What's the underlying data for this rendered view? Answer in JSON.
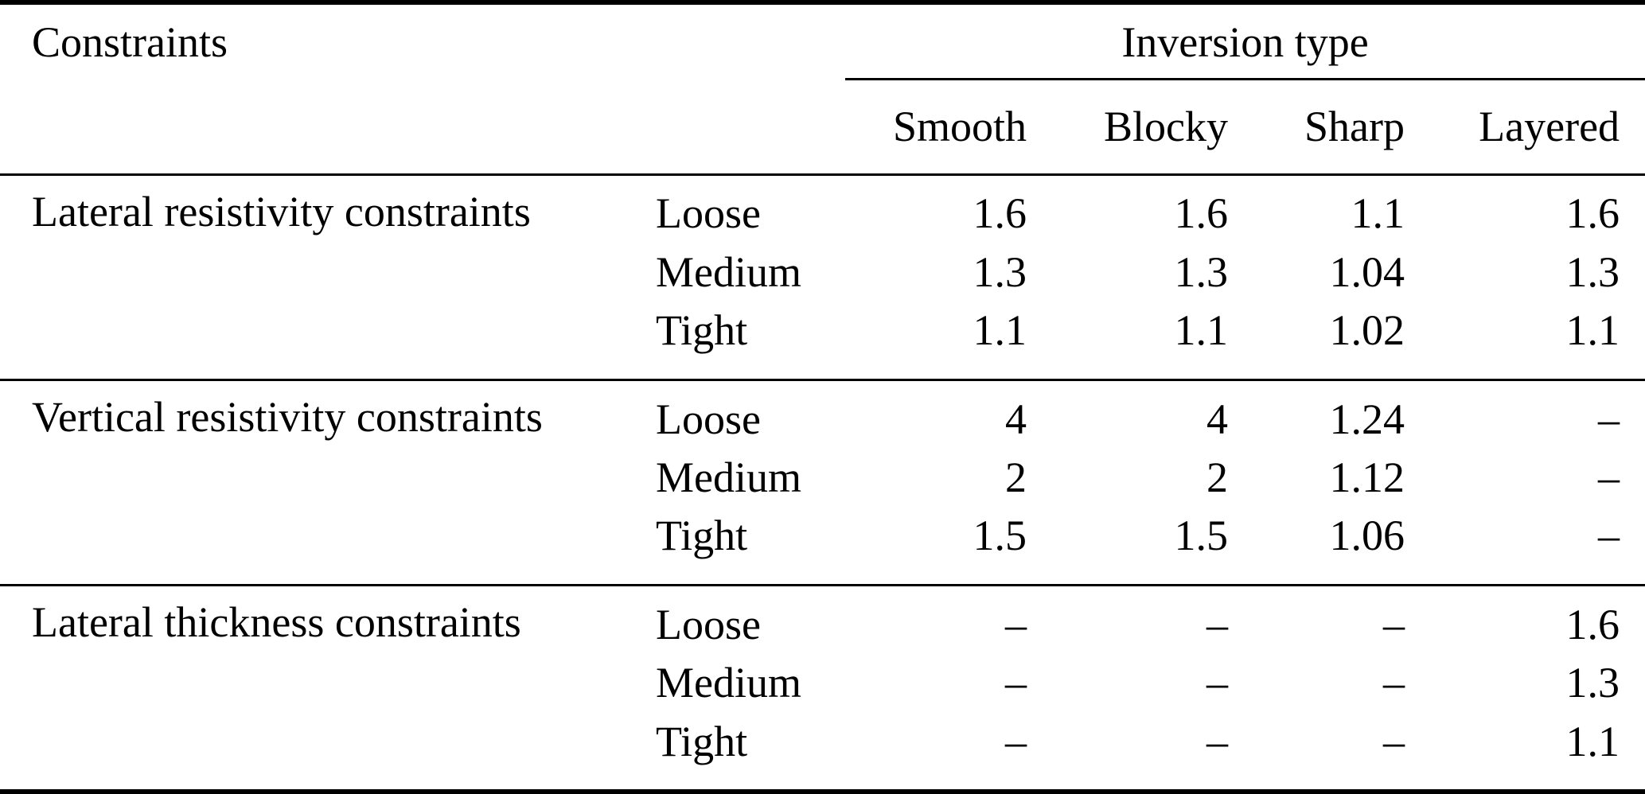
{
  "table": {
    "corner_header": "Constraints",
    "span_header": "Inversion type",
    "column_headers": [
      "Smooth",
      "Blocky",
      "Sharp",
      "Layered"
    ],
    "row_groups": [
      {
        "label": "Lateral resistivity constraints",
        "rows": [
          {
            "level": "Loose",
            "values": [
              "1.6",
              "1.6",
              "1.1",
              "1.6"
            ]
          },
          {
            "level": "Medium",
            "values": [
              "1.3",
              "1.3",
              "1.04",
              "1.3"
            ]
          },
          {
            "level": "Tight",
            "values": [
              "1.1",
              "1.1",
              "1.02",
              "1.1"
            ]
          }
        ]
      },
      {
        "label": "Vertical resistivity constraints",
        "rows": [
          {
            "level": "Loose",
            "values": [
              "4",
              "4",
              "1.24",
              "–"
            ]
          },
          {
            "level": "Medium",
            "values": [
              "2",
              "2",
              "1.12",
              "–"
            ]
          },
          {
            "level": "Tight",
            "values": [
              "1.5",
              "1.5",
              "1.06",
              "–"
            ]
          }
        ]
      },
      {
        "label": "Lateral thickness constraints",
        "rows": [
          {
            "level": "Loose",
            "values": [
              "–",
              "–",
              "–",
              "1.6"
            ]
          },
          {
            "level": "Medium",
            "values": [
              "–",
              "–",
              "–",
              "1.3"
            ]
          },
          {
            "level": "Tight",
            "values": [
              "–",
              "–",
              "–",
              "1.1"
            ]
          }
        ]
      }
    ]
  },
  "colors": {
    "text": "#000000",
    "background": "#ffffff",
    "rule": "#000000"
  }
}
